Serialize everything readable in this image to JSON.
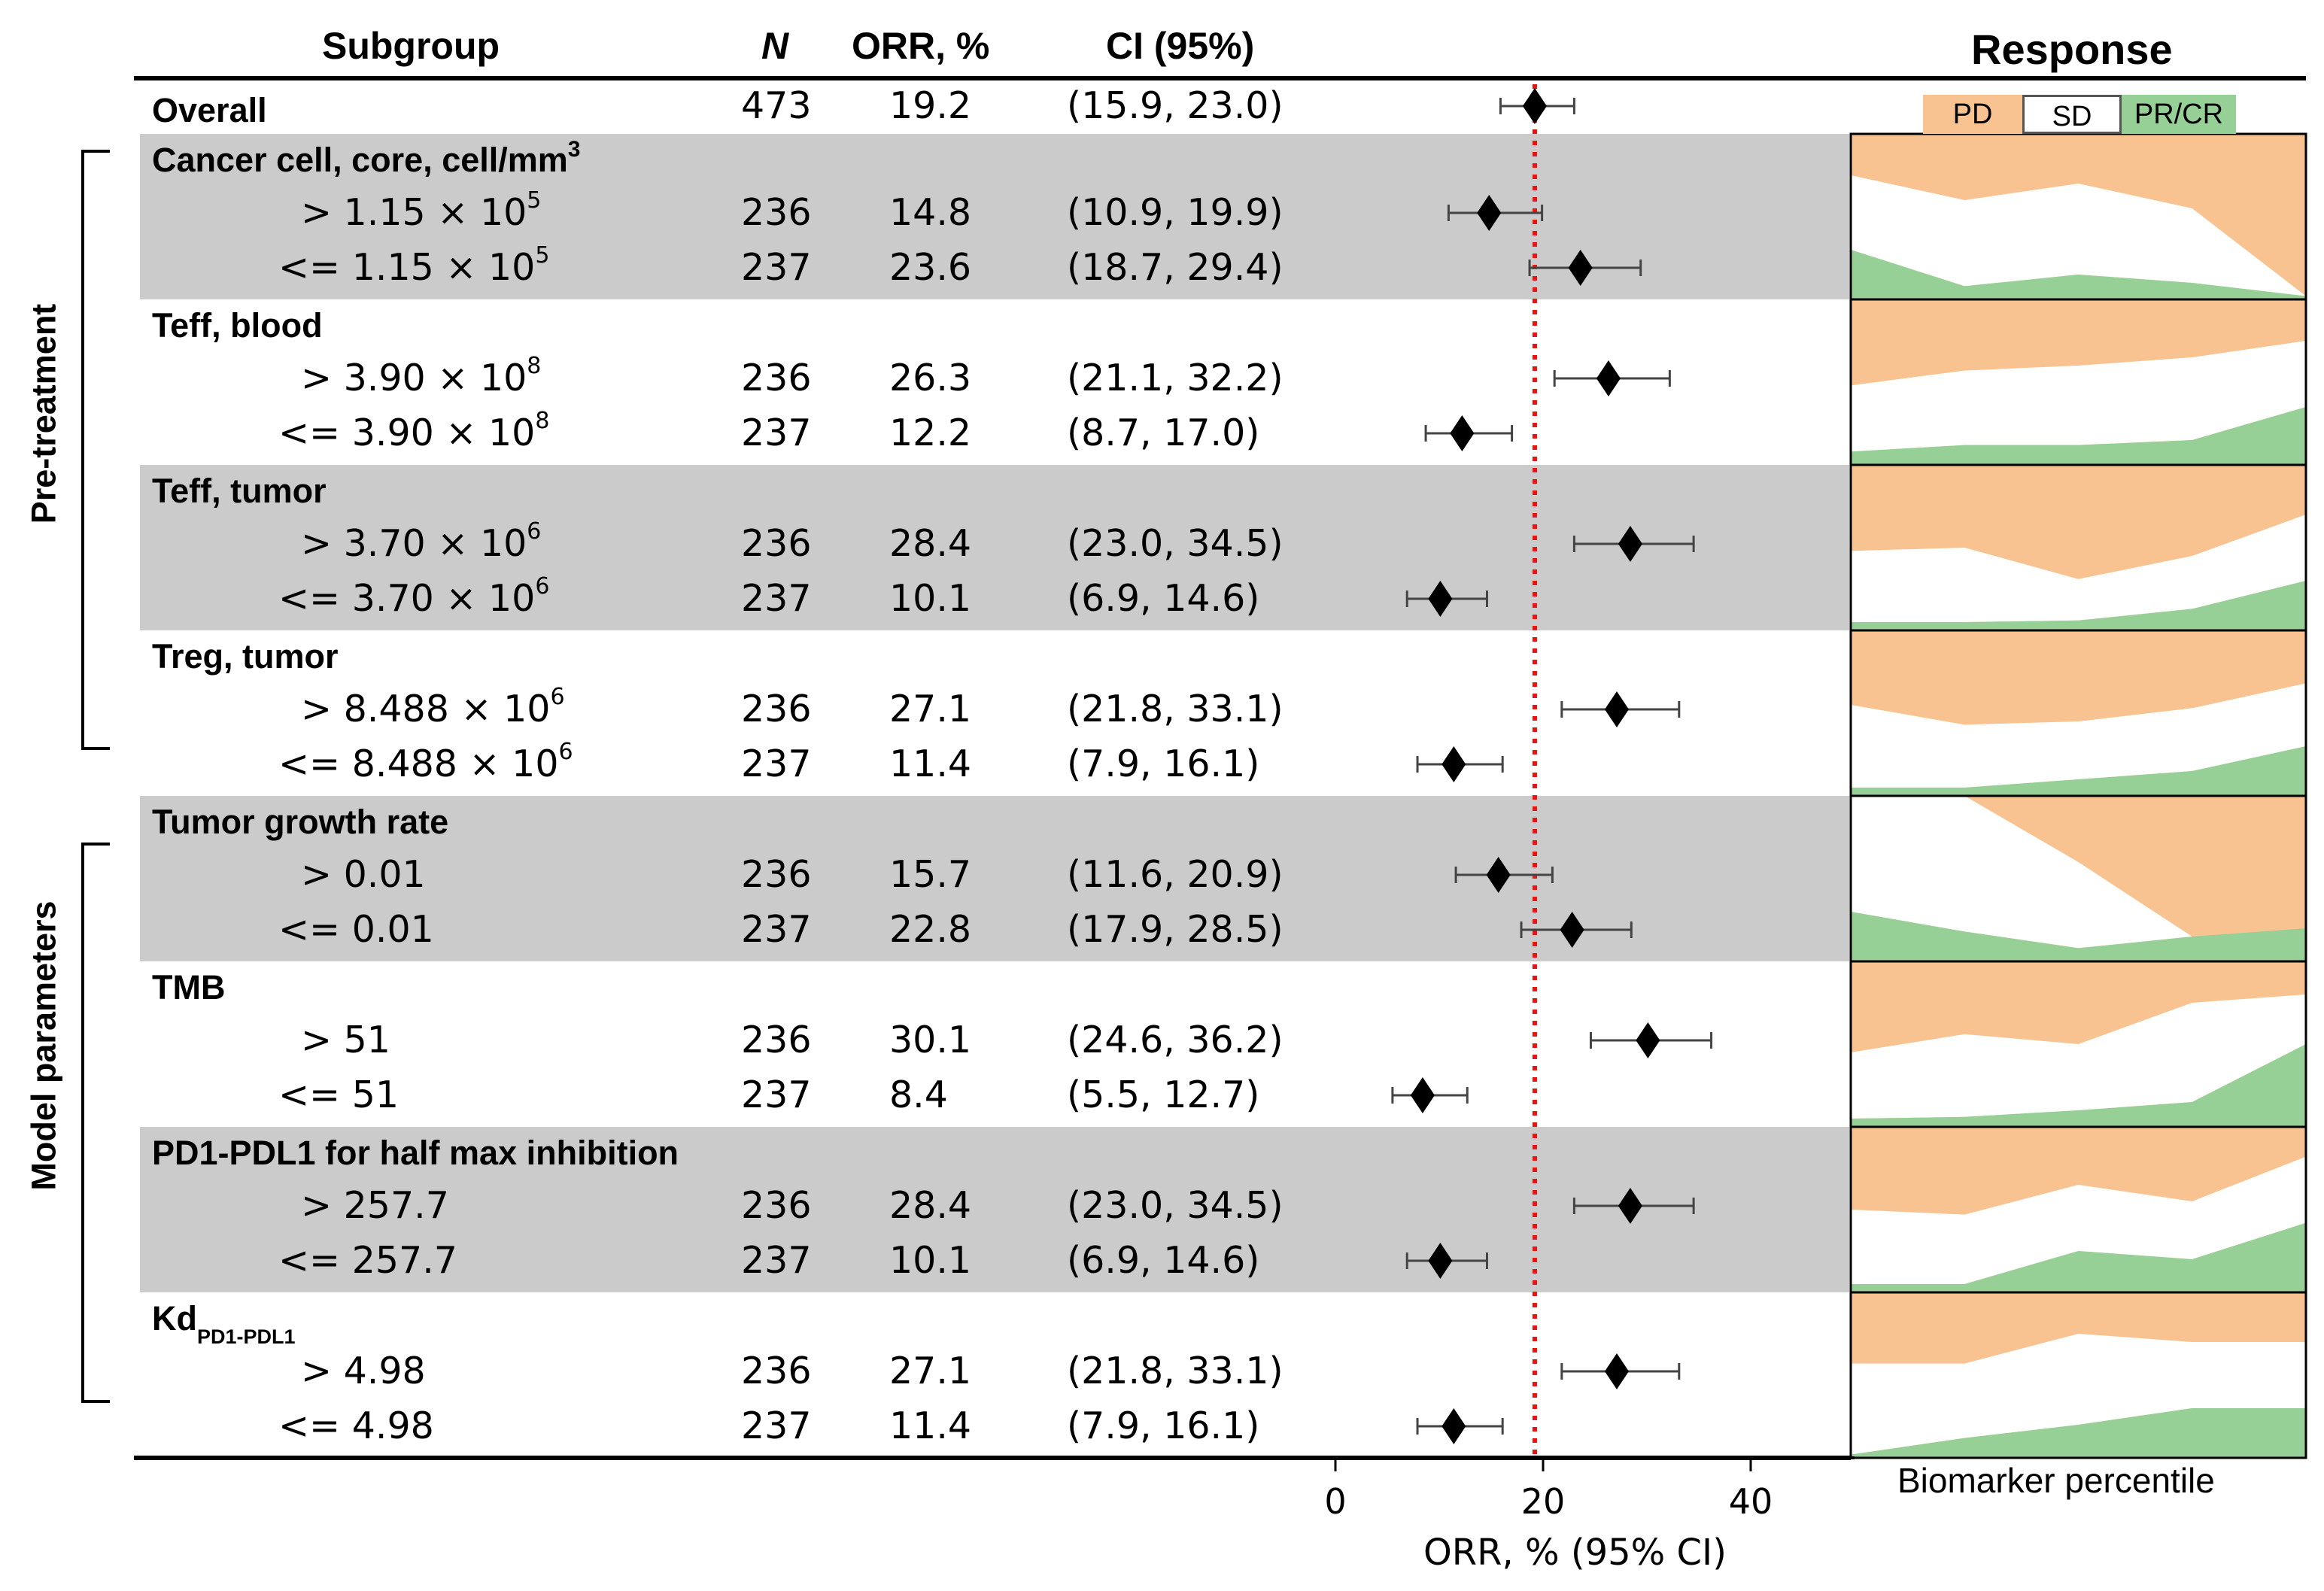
{
  "header": {
    "subgroup": "Subgroup",
    "n": "N",
    "orr": "ORR, %",
    "ci": "CI (95%)",
    "response": "Response"
  },
  "side_labels": {
    "pre_treatment": "Pre-treatment",
    "model_parameters": "Model parameters"
  },
  "legend": {
    "pd": "PD",
    "sd": "SD",
    "prcr": "PR/CR"
  },
  "colors": {
    "shade": "#cbcbcb",
    "pd": "#f8c291",
    "sd": "#ffffff",
    "prcr": "#97d097",
    "reference": "#ee1111"
  },
  "overall": {
    "label": "Overall",
    "n": "473",
    "orr": "19.2",
    "ci": "(15.9, 23.0)"
  },
  "groups": [
    {
      "title": "Cancer cell, core, cell/mm",
      "title_sup": "3",
      "sub": "",
      "shaded": true,
      "hi": {
        "label": "> 1.15 × 10",
        "sup": "5",
        "n": "236",
        "orr": "14.8",
        "ci": "(10.9, 19.9)"
      },
      "lo": {
        "label": "<= 1.15 × 10",
        "sup": "5",
        "n": "237",
        "orr": "23.6",
        "ci": "(18.7, 29.4)"
      }
    },
    {
      "title": "Teff, blood",
      "title_sup": "",
      "sub": "",
      "shaded": false,
      "hi": {
        "label": "> 3.90 × 10",
        "sup": "8",
        "n": "236",
        "orr": "26.3",
        "ci": "(21.1, 32.2)"
      },
      "lo": {
        "label": "<= 3.90 × 10",
        "sup": "8",
        "n": "237",
        "orr": "12.2",
        "ci": "(8.7, 17.0)"
      }
    },
    {
      "title": "Teff, tumor",
      "title_sup": "",
      "sub": "",
      "shaded": true,
      "hi": {
        "label": "> 3.70 × 10",
        "sup": "6",
        "n": "236",
        "orr": "28.4",
        "ci": "(23.0, 34.5)"
      },
      "lo": {
        "label": "<= 3.70 × 10",
        "sup": "6",
        "n": "237",
        "orr": "10.1",
        "ci": "(6.9, 14.6)"
      }
    },
    {
      "title": "Treg, tumor",
      "title_sup": "",
      "sub": "",
      "shaded": false,
      "hi": {
        "label": "> 8.488 × 10",
        "sup": "6",
        "n": "236",
        "orr": "27.1",
        "ci": "(21.8, 33.1)"
      },
      "lo": {
        "label": "<= 8.488 × 10",
        "sup": "6",
        "n": "237",
        "orr": "11.4",
        "ci": "(7.9, 16.1)"
      }
    },
    {
      "title": "Tumor growth rate",
      "title_sup": "",
      "sub": "",
      "shaded": true,
      "hi": {
        "label": "> 0.01",
        "sup": "",
        "n": "236",
        "orr": "15.7",
        "ci": "(11.6, 20.9)"
      },
      "lo": {
        "label": "<= 0.01",
        "sup": "",
        "n": "237",
        "orr": "22.8",
        "ci": "(17.9, 28.5)"
      }
    },
    {
      "title": "TMB",
      "title_sup": "",
      "sub": "",
      "shaded": false,
      "hi": {
        "label": "> 51",
        "sup": "",
        "n": "236",
        "orr": "30.1",
        "ci": "(24.6, 36.2)"
      },
      "lo": {
        "label": "<= 51",
        "sup": "",
        "n": "237",
        "orr": "8.4",
        "ci": "(5.5, 12.7)"
      }
    },
    {
      "title": "PD1-PDL1 for half max inhibition",
      "title_sup": "",
      "sub": "",
      "shaded": true,
      "hi": {
        "label": "> 257.7",
        "sup": "",
        "n": "236",
        "orr": "28.4",
        "ci": "(23.0, 34.5)"
      },
      "lo": {
        "label": "<= 257.7",
        "sup": "",
        "n": "237",
        "orr": "10.1",
        "ci": "(6.9, 14.6)"
      }
    },
    {
      "title": "Kd",
      "title_sup": "",
      "sub": "PD1-PDL1",
      "shaded": false,
      "hi": {
        "label": "> 4.98",
        "sup": "",
        "n": "236",
        "orr": "27.1",
        "ci": "(21.8, 33.1)"
      },
      "lo": {
        "label": "<= 4.98",
        "sup": "",
        "n": "237",
        "orr": "11.4",
        "ci": "(7.9, 16.1)"
      }
    }
  ],
  "chart_data": {
    "type": "forest",
    "xlabel": "ORR, % (95% CI)",
    "xlim": [
      0,
      50
    ],
    "xticks": [
      0,
      20,
      40
    ],
    "reference_line": 19.2,
    "rows": [
      {
        "name": "Overall",
        "orr": 19.2,
        "lo": 15.9,
        "hi": 23.0
      },
      {
        "name": "Cancer cell > 1.15e5",
        "orr": 14.8,
        "lo": 10.9,
        "hi": 19.9
      },
      {
        "name": "Cancer cell <= 1.15e5",
        "orr": 23.6,
        "lo": 18.7,
        "hi": 29.4
      },
      {
        "name": "Teff blood > 3.90e8",
        "orr": 26.3,
        "lo": 21.1,
        "hi": 32.2
      },
      {
        "name": "Teff blood <= 3.90e8",
        "orr": 12.2,
        "lo": 8.7,
        "hi": 17.0
      },
      {
        "name": "Teff tumor > 3.70e6",
        "orr": 28.4,
        "lo": 23.0,
        "hi": 34.5
      },
      {
        "name": "Teff tumor <= 3.70e6",
        "orr": 10.1,
        "lo": 6.9,
        "hi": 14.6
      },
      {
        "name": "Treg tumor > 8.488e6",
        "orr": 27.1,
        "lo": 21.8,
        "hi": 33.1
      },
      {
        "name": "Treg tumor <= 8.488e6",
        "orr": 11.4,
        "lo": 7.9,
        "hi": 16.1
      },
      {
        "name": "Tumor growth rate > 0.01",
        "orr": 15.7,
        "lo": 11.6,
        "hi": 20.9
      },
      {
        "name": "Tumor growth rate <= 0.01",
        "orr": 22.8,
        "lo": 17.9,
        "hi": 28.5
      },
      {
        "name": "TMB > 51",
        "orr": 30.1,
        "lo": 24.6,
        "hi": 36.2
      },
      {
        "name": "TMB <= 51",
        "orr": 8.4,
        "lo": 5.5,
        "hi": 12.7
      },
      {
        "name": "PD1-PDL1 half max > 257.7",
        "orr": 28.4,
        "lo": 23.0,
        "hi": 34.5
      },
      {
        "name": "PD1-PDL1 half max <= 257.7",
        "orr": 10.1,
        "lo": 6.9,
        "hi": 14.6
      },
      {
        "name": "Kd > 4.98",
        "orr": 27.1,
        "lo": 21.8,
        "hi": 33.1
      },
      {
        "name": "Kd <= 4.98",
        "orr": 11.4,
        "lo": 7.9,
        "hi": 16.1
      }
    ],
    "response": {
      "xlabel": "Biomarker percentile",
      "percentiles": [
        0,
        25,
        50,
        75,
        100
      ],
      "panels": [
        {
          "name": "Cancer cell, core",
          "prcr": [
            0.3,
            0.08,
            0.15,
            0.1,
            0.02
          ],
          "sd": [
            0.45,
            0.52,
            0.55,
            0.45,
            0.0
          ]
        },
        {
          "name": "Teff, blood",
          "prcr": [
            0.08,
            0.12,
            0.12,
            0.15,
            0.35
          ],
          "sd": [
            0.4,
            0.45,
            0.48,
            0.5,
            0.4
          ]
        },
        {
          "name": "Teff, tumor",
          "prcr": [
            0.05,
            0.05,
            0.06,
            0.13,
            0.3
          ],
          "sd": [
            0.43,
            0.45,
            0.25,
            0.32,
            0.4
          ]
        },
        {
          "name": "Treg, tumor",
          "prcr": [
            0.05,
            0.05,
            0.1,
            0.15,
            0.3
          ],
          "sd": [
            0.5,
            0.38,
            0.35,
            0.38,
            0.38
          ]
        },
        {
          "name": "Tumor growth rate",
          "prcr": [
            0.3,
            0.18,
            0.08,
            0.15,
            0.2
          ],
          "sd": [
            0.7,
            0.82,
            0.52,
            0.0,
            0.0
          ]
        },
        {
          "name": "TMB",
          "prcr": [
            0.05,
            0.06,
            0.1,
            0.15,
            0.5
          ],
          "sd": [
            0.4,
            0.5,
            0.4,
            0.6,
            0.3
          ]
        },
        {
          "name": "PD1-PDL1 for half max inhibition",
          "prcr": [
            0.05,
            0.05,
            0.25,
            0.2,
            0.42
          ],
          "sd": [
            0.45,
            0.42,
            0.4,
            0.35,
            0.4
          ]
        },
        {
          "name": "Kd PD1-PDL1",
          "prcr": [
            0.02,
            0.12,
            0.2,
            0.3,
            0.3
          ],
          "sd": [
            0.55,
            0.45,
            0.55,
            0.4,
            0.4
          ]
        }
      ]
    }
  }
}
